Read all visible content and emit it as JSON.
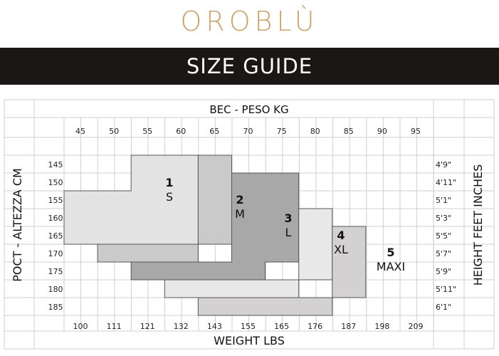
{
  "header": {
    "brand": "OROBLÙ",
    "title": "SIZE GUIDE"
  },
  "chart_data": {
    "type": "table",
    "top_axis_title": "BEC - PESO KG",
    "bottom_axis_title": "WEIGHT LBS",
    "left_axis_title": "POCT - ALTEZZA CM",
    "right_axis_title": "HEIGHT FEET INCHES",
    "weights_kg": [
      "45",
      "50",
      "55",
      "60",
      "65",
      "70",
      "75",
      "80",
      "85",
      "90",
      "95"
    ],
    "weights_lbs": [
      "100",
      "111",
      "121",
      "132",
      "143",
      "155",
      "165",
      "176",
      "187",
      "198",
      "209"
    ],
    "heights_cm": [
      "145",
      "150",
      "155",
      "160",
      "165",
      "170",
      "175",
      "180",
      "185"
    ],
    "heights_ft": [
      "4'9\"",
      "4'11\"",
      "5'1\"",
      "5'3\"",
      "5'5\"",
      "5'7\"",
      "5'9\"",
      "5'11\"",
      "6'1\""
    ],
    "sizes": [
      {
        "number": "1",
        "label": "S",
        "color": "#e3e3e3",
        "height_ranges_cm": [
          [
            145,
            150,
            55,
            65
          ],
          [
            155,
            165,
            45,
            65
          ]
        ]
      },
      {
        "number": "2",
        "label": "M",
        "color": "#cbcaca",
        "height_ranges_cm": [
          [
            145,
            165,
            65,
            70
          ],
          [
            170,
            170,
            50,
            65
          ]
        ]
      },
      {
        "number": "3",
        "label": "L",
        "color": "#a9a8a8",
        "height_ranges_cm": [
          [
            150,
            170,
            70,
            80
          ],
          [
            175,
            175,
            55,
            75
          ]
        ]
      },
      {
        "number": "4",
        "label": "XL",
        "color": "#e8e8e8",
        "height_ranges_cm": [
          [
            160,
            175,
            80,
            85
          ],
          [
            180,
            180,
            60,
            80
          ]
        ]
      },
      {
        "number": "5",
        "label": "MAXI",
        "color": "#d3d1d1",
        "height_ranges_cm": [
          [
            165,
            180,
            85,
            90
          ],
          [
            185,
            185,
            65,
            85
          ]
        ]
      }
    ]
  }
}
